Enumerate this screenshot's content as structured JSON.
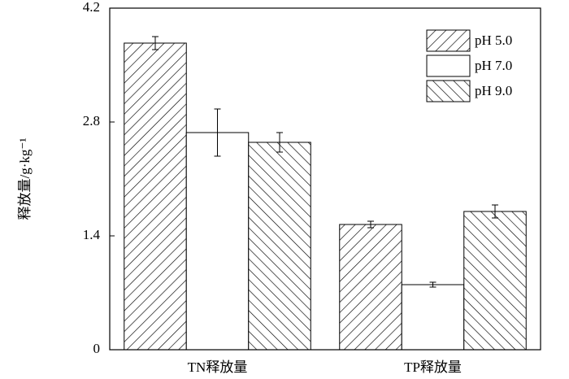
{
  "chart_data": {
    "type": "bar",
    "ylabel": "释放量/g·kg⁻¹",
    "categories": [
      "TN释放量",
      "TP释放量"
    ],
    "series": [
      {
        "name": "pH 5.0",
        "color": "#000000",
        "hatch": "forward",
        "values": [
          3.77,
          1.54
        ],
        "errors": [
          0.08,
          0.04
        ]
      },
      {
        "name": "pH 7.0",
        "color": "#000000",
        "hatch": "none",
        "values": [
          2.67,
          0.8
        ],
        "errors": [
          0.29,
          0.03
        ]
      },
      {
        "name": "pH 9.0",
        "color": "#000000",
        "hatch": "back",
        "values": [
          2.55,
          1.7
        ],
        "errors": [
          0.12,
          0.08
        ]
      }
    ],
    "ylim": [
      0,
      4.2
    ],
    "yticks": [
      0,
      1.4,
      2.8,
      4.2
    ],
    "legend": "upper right"
  }
}
